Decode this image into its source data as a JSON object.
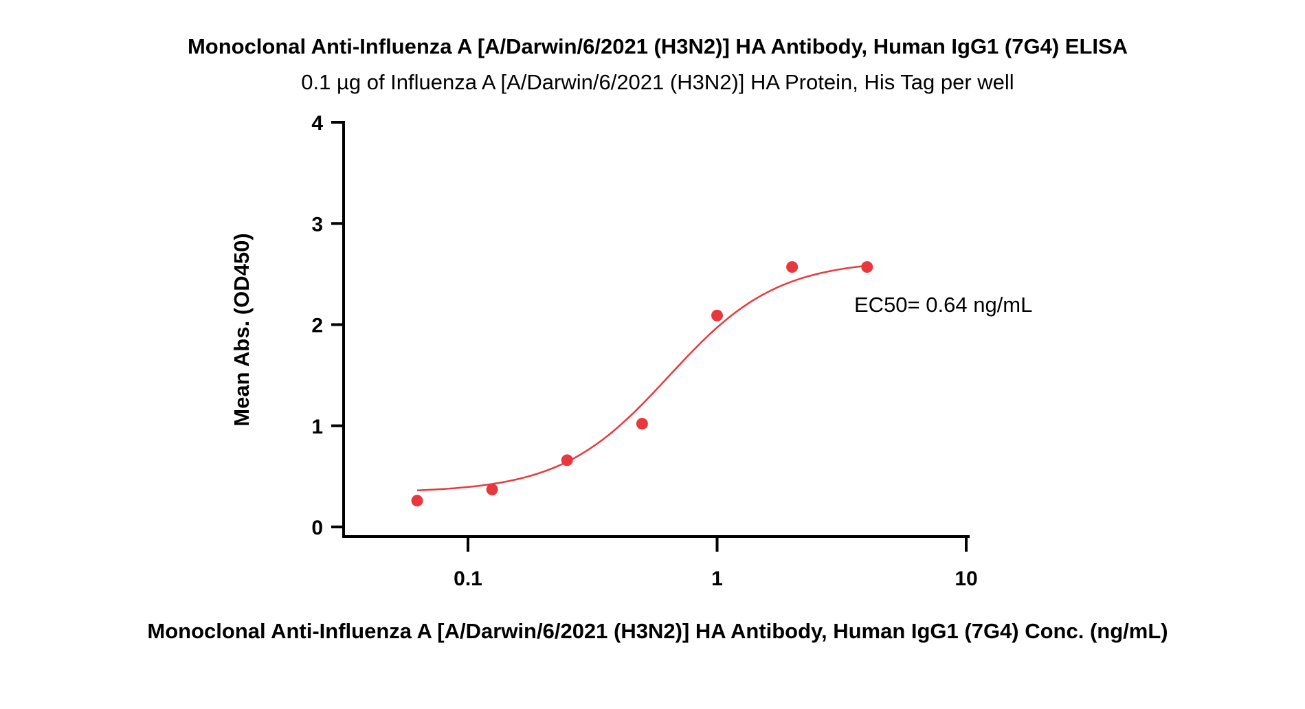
{
  "chart_data": {
    "type": "scatter",
    "title": "Monoclonal Anti-Influenza A [A/Darwin/6/2021 (H3N2)] HA Antibody, Human IgG1 (7G4) ELISA",
    "subtitle": "0.1 µg of Influenza A [A/Darwin/6/2021 (H3N2)] HA Protein, His Tag per well",
    "xlabel": "Monoclonal Anti-Influenza A [A/Darwin/6/2021 (H3N2)] HA Antibody, Human IgG1 (7G4) Conc. (ng/mL)",
    "ylabel": "Mean Abs. (OD450)",
    "xscale": "log",
    "xlim": [
      0.025,
      10
    ],
    "ylim": [
      0,
      4
    ],
    "x_ticks": [
      0.1,
      1,
      10
    ],
    "x_tick_labels": [
      "0.1",
      "1",
      "10"
    ],
    "y_ticks": [
      0,
      1,
      2,
      3,
      4
    ],
    "y_tick_labels": [
      "0",
      "1",
      "2",
      "3",
      "4"
    ],
    "grid": false,
    "color": "#e8383d",
    "series": [
      {
        "x": [
          0.0625,
          0.125,
          0.25,
          0.5,
          1,
          2,
          4
        ],
        "y": [
          0.26,
          0.37,
          0.66,
          1.02,
          2.09,
          2.57,
          2.57
        ]
      }
    ],
    "fit": {
      "model": "4PL",
      "bottom": 0.34,
      "top": 2.64,
      "ec50": 0.64,
      "hill": 2.0
    },
    "annotation": "EC50= 0.64 ng/mL"
  }
}
